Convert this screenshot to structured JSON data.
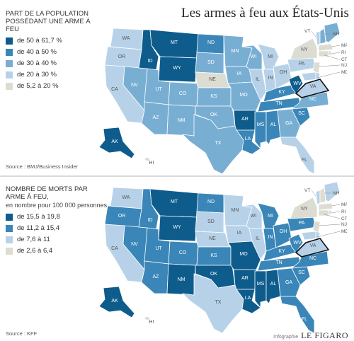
{
  "title": "Les armes à feu aux États-Unis",
  "colors": {
    "c1": "#0e5c8c",
    "c2": "#3a86b8",
    "c3": "#79aed3",
    "c4": "#b7d2e8",
    "c5": "#dcdcd2"
  },
  "map1": {
    "legend_title": "PART DE LA POPULATION POSSÉDANT UNE ARME À FEU",
    "legend": [
      {
        "label": "de 50 à 61,7 %",
        "color": "#0e5c8c"
      },
      {
        "label": "de 40 à 50 %",
        "color": "#3a86b8"
      },
      {
        "label": "de 30 à 40 %",
        "color": "#79aed3"
      },
      {
        "label": "de 20 à 30 %",
        "color": "#b7d2e8"
      },
      {
        "label": "de 5,2 à 20 %",
        "color": "#dcdcd2"
      }
    ],
    "source": "Source : BMJ/Business Insider",
    "states": {
      "WA": "c4",
      "OR": "c4",
      "CA": "c4",
      "NV": "c3",
      "ID": "c1",
      "MT": "c1",
      "WY": "c1",
      "UT": "c3",
      "AZ": "c3",
      "CO": "c3",
      "NM": "c3",
      "ND": "c2",
      "SD": "c3",
      "NE": "c5",
      "KS": "c3",
      "OK": "c3",
      "TX": "c3",
      "MN": "c3",
      "IA": "c3",
      "MO": "c3",
      "AR": "c1",
      "LA": "c2",
      "WI": "c3",
      "IL": "c4",
      "MI": "c4",
      "IN": "c4",
      "OH": "c4",
      "KY": "c2",
      "TN": "c2",
      "MS": "c2",
      "AL": "c2",
      "GA": "c3",
      "FL": "c4",
      "SC": "c2",
      "NC": "c3",
      "VA": "c4",
      "WV": "c1",
      "PA": "c4",
      "NY": "c5",
      "VT": "c4",
      "NH": "c3",
      "ME": "c3",
      "MA": "c5",
      "CT": "c5",
      "RI": "c5",
      "NJ": "c5",
      "MD": "c4",
      "DE": "c4",
      "AK": "c1",
      "HI": "c5"
    }
  },
  "map2": {
    "legend_title": "NOMBRE DE MORTS PAR ARME À FEU,",
    "legend_subtitle": "en nombre pour 100 000 personnes",
    "legend": [
      {
        "label": "de 15,5 à 19,8",
        "color": "#0e5c8c"
      },
      {
        "label": "de 11,2 à 15,4",
        "color": "#3a86b8"
      },
      {
        "label": "de 7,6 à 11",
        "color": "#b7d2e8"
      },
      {
        "label": "de 2,6 à 6,4",
        "color": "#dcdcd2"
      }
    ],
    "source": "Source : KFF",
    "states": {
      "WA": "c4",
      "OR": "c2",
      "CA": "c4",
      "NV": "c2",
      "ID": "c2",
      "MT": "c1",
      "WY": "c1",
      "UT": "c2",
      "AZ": "c2",
      "CO": "c2",
      "NM": "c1",
      "ND": "c2",
      "SD": "c4",
      "NE": "c4",
      "KS": "c2",
      "OK": "c1",
      "TX": "c4",
      "MN": "c4",
      "IA": "c4",
      "MO": "c1",
      "AR": "c1",
      "LA": "c1",
      "WI": "c4",
      "IL": "c4",
      "MI": "c2",
      "IN": "c2",
      "OH": "c2",
      "KY": "c2",
      "TN": "c2",
      "MS": "c1",
      "AL": "c1",
      "GA": "c2",
      "FL": "c2",
      "SC": "c2",
      "NC": "c2",
      "VA": "c4",
      "WV": "c2",
      "PA": "c2",
      "NY": "c5",
      "VT": "c4",
      "NH": "c5",
      "ME": "c4",
      "MA": "c5",
      "CT": "c5",
      "RI": "c5",
      "NJ": "c5",
      "MD": "c4",
      "DE": "c4",
      "AK": "c1",
      "HI": "c5"
    }
  },
  "credit": {
    "label": "Infographie",
    "brand": "LE FIGARO"
  }
}
